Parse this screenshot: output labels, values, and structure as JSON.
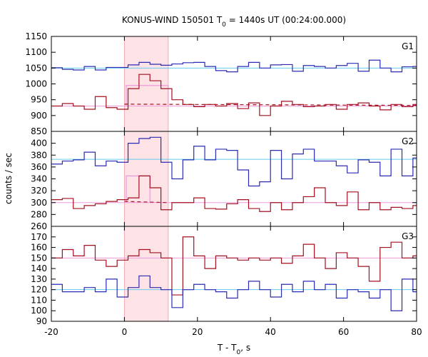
{
  "chart_data": {
    "type": "line",
    "title_main": "KONUS-WIND 150501 T",
    "title_sub": "0",
    "title_rest": " = 1440s UT (00:24:00.000)",
    "xlabel_main": "T - T",
    "xlabel_sub": "0",
    "xlabel_rest": ", s",
    "ylabel": "counts / sec",
    "xlim": [
      -20,
      80
    ],
    "xticks": [
      -20,
      0,
      20,
      40,
      60,
      80
    ],
    "x_bin_edges": [
      -20,
      -17,
      -14,
      -11,
      -8,
      -5,
      -2,
      1,
      4,
      7,
      10,
      13,
      16,
      19,
      22,
      25,
      28,
      31,
      34,
      37,
      40,
      43,
      46,
      49,
      52,
      55,
      58,
      61,
      64,
      67,
      70,
      73,
      76,
      79,
      82
    ],
    "colors": {
      "blue": "#2b2bb3",
      "red": "#a31020",
      "cyan": "#66ccee",
      "pink": "#ee99dd",
      "shade": "#fde3e6"
    },
    "highlight_interval": [
      0,
      12
    ],
    "panels": [
      {
        "label": "G1",
        "ylim": [
          850,
          1150
        ],
        "yticks": [
          850,
          900,
          950,
          1000,
          1050,
          1100,
          1150
        ],
        "series": [
          {
            "color_key": "blue",
            "values": [
              1051,
              1046,
              1044,
              1055,
              1044,
              1052,
              1052,
              1060,
              1068,
              1062,
              1059,
              1063,
              1067,
              1068,
              1055,
              1042,
              1038,
              1055,
              1068,
              1050,
              1060,
              1061,
              1040,
              1058,
              1055,
              1050,
              1058,
              1065,
              1040,
              1075,
              1050,
              1038,
              1054,
              1055
            ]
          },
          {
            "color_key": "red",
            "values": [
              930,
              938,
              930,
              920,
              960,
              925,
              920,
              985,
              1030,
              1010,
              985,
              950,
              935,
              928,
              935,
              930,
              938,
              922,
              940,
              900,
              930,
              945,
              935,
              928,
              930,
              935,
              920,
              935,
              940,
              930,
              918,
              935,
              928,
              935
            ]
          }
        ],
        "bg_level": {
          "color_key": "cyan",
          "value": 1050
        },
        "bg_level2": {
          "color_key": "pink",
          "value": 930
        },
        "avg_boxes": [
          {
            "color_key": "pink",
            "x0": 0.5,
            "x1": 12,
            "value": 995
          }
        ],
        "dashed_fit": {
          "color_key": "red",
          "x0": 0,
          "x1": 82,
          "y0": 936,
          "y1": 932
        }
      },
      {
        "label": "G2",
        "ylim": [
          260,
          420
        ],
        "yticks": [
          260,
          280,
          300,
          320,
          340,
          360,
          380,
          400
        ],
        "series": [
          {
            "color_key": "blue",
            "values": [
              365,
              370,
              372,
              385,
              362,
              370,
              368,
              400,
              408,
              410,
              368,
              340,
              372,
              395,
              372,
              390,
              388,
              355,
              328,
              335,
              388,
              340,
              382,
              390,
              370,
              370,
              362,
              350,
              372,
              368,
              345,
              390,
              345,
              375
            ]
          },
          {
            "color_key": "red",
            "values": [
              305,
              307,
              290,
              295,
              298,
              302,
              305,
              308,
              345,
              325,
              288,
              300,
              300,
              308,
              290,
              289,
              298,
              305,
              290,
              285,
              300,
              288,
              300,
              310,
              325,
              300,
              295,
              318,
              288,
              300,
              288,
              292,
              290,
              295
            ]
          }
        ],
        "bg_level": {
          "color_key": "cyan",
          "value": 373
        },
        "bg_level2": {
          "color_key": "pink",
          "value": 300
        },
        "avg_boxes": [
          {
            "color_key": "pink",
            "x0": 0.5,
            "x1": 7,
            "value": 345
          }
        ],
        "dashed_fit": {
          "color_key": "red",
          "x0": 0,
          "x1": 12,
          "y0": 302,
          "y1": 300
        }
      },
      {
        "label": "G3",
        "ylim": [
          90,
          180
        ],
        "yticks": [
          90,
          100,
          110,
          120,
          130,
          140,
          150,
          160,
          170
        ],
        "series": [
          {
            "color_key": "red",
            "values": [
              150,
              158,
              152,
              162,
              148,
              142,
              148,
              152,
              158,
              155,
              150,
              115,
              170,
              152,
              140,
              152,
              150,
              148,
              150,
              148,
              150,
              145,
              152,
              163,
              150,
              140,
              155,
              150,
              142,
              128,
              160,
              165,
              150,
              152
            ]
          },
          {
            "color_key": "blue",
            "values": [
              125,
              118,
              118,
              122,
              118,
              130,
              113,
              122,
              133,
              122,
              120,
              103,
              120,
              125,
              120,
              118,
              112,
              120,
              128,
              120,
              113,
              125,
              118,
              128,
              120,
              125,
              112,
              120,
              118,
              112,
              120,
              100,
              130,
              118
            ]
          }
        ],
        "bg_level": {
          "color_key": "cyan",
          "value": 120
        },
        "bg_level2": {
          "color_key": "pink",
          "value": 150
        },
        "avg_boxes": [],
        "dashed_fit": null
      }
    ]
  }
}
